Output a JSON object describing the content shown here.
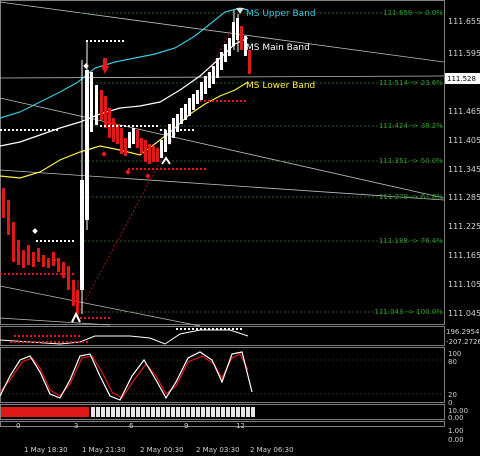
{
  "price_axis": [
    "111.655",
    "111.595",
    "111.535",
    "111.465",
    "111.405",
    "111.345",
    "111.285",
    "111.225",
    "111.165",
    "111.105",
    "111.045"
  ],
  "current_price": "111.528",
  "fib_levels": [
    "111.659 -> 0.0%",
    "111.514 -> 23.6%",
    "111.424 -> 38.2%",
    "111.351 -> 50.0%",
    "111.279 -> 61.8%",
    "111.188 -> 76.4%",
    "111.043 -> 100.0%"
  ],
  "band_labels": {
    "upper": "MS Upper Band",
    "main": "MS Main Band",
    "lower": "MS Lower Band"
  },
  "indicator1_axis": [
    "196.2954",
    "-207.2726"
  ],
  "stoch_axis": [
    "100",
    "80",
    "20",
    "0"
  ],
  "strip_axis": [
    "10.00",
    "0.00"
  ],
  "bottom_axis": [
    "1.00",
    "0.00"
  ],
  "bar_index_labels": [
    "0",
    "3",
    "6",
    "9",
    "12"
  ],
  "time_labels": [
    "1 May 18:30",
    "1 May 21:30",
    "2 May 00:30",
    "2 May 03:30",
    "2 May 06:30"
  ],
  "colors": {
    "upper_band": "#3cc8dc",
    "main_band": "#ffffff",
    "lower_band": "#ffee44",
    "bear": "#e01818",
    "bull": "#ffffff",
    "fib": "#2e9a2e"
  }
}
